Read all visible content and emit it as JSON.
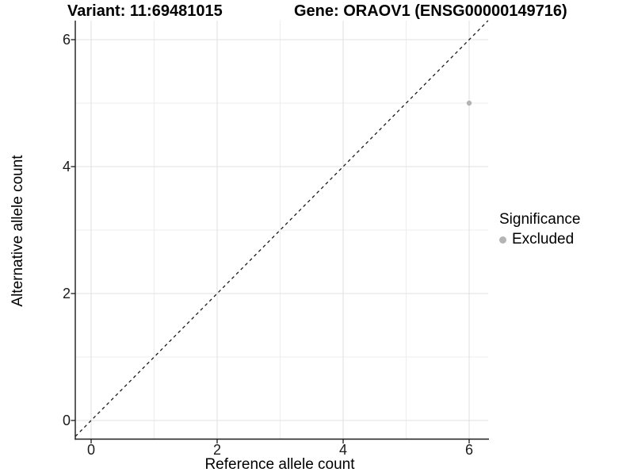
{
  "titles": {
    "variant": "Variant: 11:69481015",
    "gene": "Gene: ORAOV1 (ENSG00000149716)"
  },
  "legend": {
    "title": "Significance",
    "items": [
      {
        "label": "Excluded",
        "color": "#b4b4b4"
      }
    ]
  },
  "chart_data": {
    "type": "scatter",
    "title": "Variant: 11:69481015  /  Gene: ORAOV1 (ENSG00000149716)",
    "xlabel": "Reference allele count",
    "ylabel": "Alternative allele count",
    "xlim": [
      -0.3,
      6.3
    ],
    "ylim": [
      -0.3,
      6.3
    ],
    "x_ticks": [
      0,
      2,
      4,
      6
    ],
    "y_ticks": [
      0,
      2,
      4,
      6
    ],
    "minor_grid_x": [
      1,
      3,
      5
    ],
    "minor_grid_y": [
      1,
      3,
      5
    ],
    "grid": "on",
    "legend_position": "right",
    "series": [
      {
        "name": "Excluded",
        "color": "#b4b4b4",
        "points": [
          {
            "x": 6,
            "y": 5
          }
        ]
      }
    ],
    "reference_line": {
      "type": "identity",
      "equation": "y = x",
      "style": "dashed",
      "color": "#1a1a1a",
      "x1": -0.25,
      "y1": -0.25,
      "x2": 6.3,
      "y2": 6.3
    }
  },
  "colors": {
    "background": "#ffffff",
    "grid_major": "#e2e2e2",
    "grid_minor": "#eeeeee",
    "axis": "#1a1a1a",
    "tick_text": "#1a1a1a",
    "point": "#b4b4b4"
  }
}
